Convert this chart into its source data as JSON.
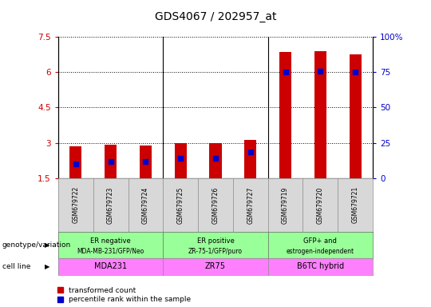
{
  "title": "GDS4067 / 202957_at",
  "samples": [
    "GSM679722",
    "GSM679723",
    "GSM679724",
    "GSM679725",
    "GSM679726",
    "GSM679727",
    "GSM679719",
    "GSM679720",
    "GSM679721"
  ],
  "red_values": [
    2.85,
    2.92,
    2.88,
    3.0,
    3.0,
    3.12,
    6.85,
    6.9,
    6.75
  ],
  "blue_values": [
    2.1,
    2.2,
    2.2,
    2.35,
    2.35,
    2.6,
    6.02,
    6.04,
    6.02
  ],
  "ylim_left": [
    1.5,
    7.5
  ],
  "ylim_right": [
    0,
    100
  ],
  "yticks_left": [
    1.5,
    3.0,
    4.5,
    6.0,
    7.5
  ],
  "yticks_right": [
    0,
    25,
    50,
    75,
    100
  ],
  "ytick_labels_left": [
    "1.5",
    "3",
    "4.5",
    "6",
    "7.5"
  ],
  "ytick_labels_right": [
    "0",
    "25",
    "50",
    "75",
    "100%"
  ],
  "group_starts": [
    0,
    3,
    6
  ],
  "group_ends": [
    3,
    6,
    9
  ],
  "geno_labels_line1": [
    "ER negative",
    "ER positive",
    "GFP+ and"
  ],
  "geno_labels_line2": [
    "MDA-MB-231/GFP/Neo",
    "ZR-75-1/GFP/puro",
    "estrogen-independent"
  ],
  "cell_labels": [
    "MDA231",
    "ZR75",
    "B6TC hybrid"
  ],
  "geno_color": "#99FF99",
  "cell_color_left": "#FF80FF",
  "cell_color_right": "#FFAAFF",
  "group_separators": [
    3,
    6
  ],
  "bar_color": "#CC0000",
  "dot_color": "#0000CC",
  "bar_width": 0.35,
  "dot_size": 18,
  "grid_color": "black",
  "legend_red": "transformed count",
  "legend_blue": "percentile rank within the sample",
  "genotype_label": "genotype/variation",
  "cell_line_label": "cell line",
  "tick_color_left": "#CC0000",
  "tick_color_right": "#0000CC",
  "sample_box_color": "#D8D8D8",
  "sample_box_edge": "#888888"
}
